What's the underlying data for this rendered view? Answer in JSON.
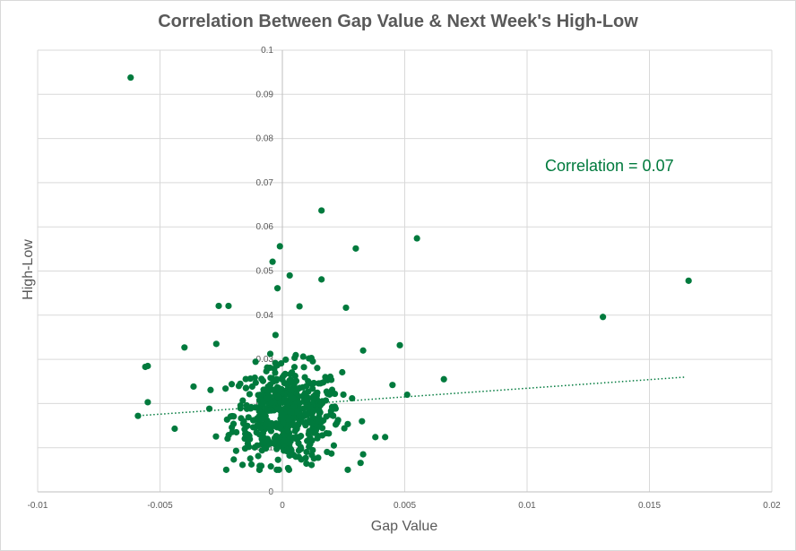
{
  "chart_data": {
    "type": "scatter",
    "title": "Correlation Between Gap Value & Next Week's High-Low",
    "xlabel": "Gap Value",
    "ylabel": "High-Low",
    "xlim": [
      -0.01,
      0.02
    ],
    "ylim": [
      0,
      0.1
    ],
    "x_ticks": [
      -0.01,
      -0.005,
      0,
      0.005,
      0.01,
      0.015,
      0.02
    ],
    "x_tick_labels": [
      "-0.01",
      "-0.005",
      "0",
      "0.005",
      "0.01",
      "0.015",
      "0.02"
    ],
    "y_ticks": [
      0,
      0.01,
      0.02,
      0.03,
      0.04,
      0.05,
      0.06,
      0.07,
      0.08,
      0.09,
      0.1
    ],
    "y_tick_labels": [
      "0",
      "0.01",
      "0.02",
      "0.03",
      "0.04",
      "0.05",
      "0.06",
      "0.07",
      "0.08",
      "0.09",
      "0.1"
    ],
    "grid": true,
    "annotation": "Correlation = 0.07",
    "trendline": {
      "type": "linear",
      "x": [
        -0.006,
        0.0165
      ],
      "y": [
        0.0172,
        0.026
      ],
      "color": "#007a3d",
      "style": "dotted"
    },
    "marker_color": "#007a3d",
    "outliers": [
      [
        -0.0062,
        0.0938
      ],
      [
        -0.0055,
        0.0285
      ],
      [
        -0.0056,
        0.0283
      ],
      [
        -0.0055,
        0.0203
      ],
      [
        -0.0059,
        0.0172
      ],
      [
        0.0016,
        0.0637
      ],
      [
        0.0055,
        0.0574
      ],
      [
        0.003,
        0.0551
      ],
      [
        -0.0001,
        0.0556
      ],
      [
        0.0131,
        0.0396
      ],
      [
        0.0166,
        0.0478
      ],
      [
        0.0066,
        0.0255
      ],
      [
        0.0048,
        0.0332
      ],
      [
        0.0033,
        0.032
      ],
      [
        0.0051,
        0.022
      ],
      [
        0.0045,
        0.0242
      ],
      [
        0.0042,
        0.0124
      ],
      [
        0.0038,
        0.0124
      ],
      [
        0.0033,
        0.0085
      ],
      [
        -0.0026,
        0.0421
      ],
      [
        -0.0022,
        0.0421
      ],
      [
        -0.0027,
        0.0335
      ],
      [
        -0.004,
        0.0327
      ],
      [
        -0.0044,
        0.0143
      ],
      [
        0.0026,
        0.0417
      ],
      [
        0.0016,
        0.0481
      ],
      [
        0.0003,
        0.049
      ],
      [
        0.0007,
        0.042
      ],
      [
        -0.0002,
        0.0461
      ],
      [
        -0.0004,
        0.0521
      ]
    ],
    "cluster": {
      "x_mean": 0.0002,
      "x_sd": 0.0011,
      "x_min": -0.004,
      "x_max": 0.0036,
      "y_mean": 0.0175,
      "y_sd": 0.0055,
      "y_min": 0.005,
      "y_max": 0.04,
      "count": 520
    }
  }
}
